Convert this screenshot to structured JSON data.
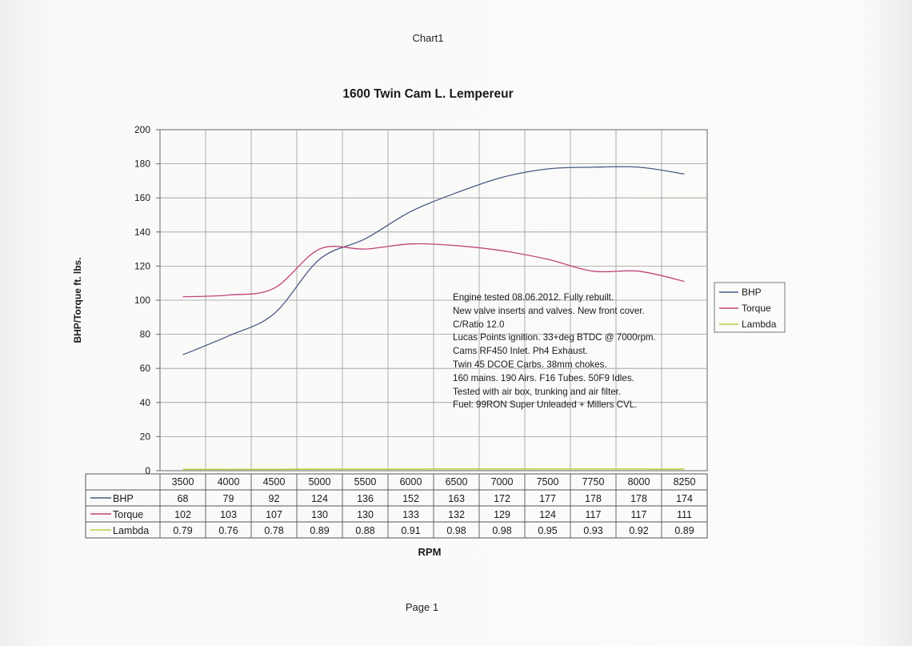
{
  "page": {
    "sheet_title": "Chart1",
    "footer": "Page 1"
  },
  "chart_data": {
    "type": "line",
    "title": "1600 Twin Cam L. Lempereur",
    "xlabel": "RPM",
    "ylabel": "BHP/Torque ft. lbs.",
    "ylim": [
      0,
      200
    ],
    "y_ticks": [
      "0",
      "20",
      "40",
      "60",
      "80",
      "100",
      "120",
      "140",
      "160",
      "180",
      "200"
    ],
    "categories": [
      "3500",
      "4000",
      "4500",
      "5000",
      "5500",
      "6000",
      "6500",
      "7000",
      "7500",
      "7750",
      "8000",
      "8250"
    ],
    "series": [
      {
        "name": "BHP",
        "color": "#4a5a86",
        "values": [
          68,
          79,
          92,
          124,
          136,
          152,
          163,
          172,
          177,
          178,
          178,
          174
        ],
        "table": [
          "68",
          "79",
          "92",
          "124",
          "136",
          "152",
          "163",
          "172",
          "177",
          "178",
          "178",
          "174"
        ]
      },
      {
        "name": "Torque",
        "color": "#c0447a",
        "values": [
          102,
          103,
          107,
          130,
          130,
          133,
          132,
          129,
          124,
          117,
          117,
          111
        ],
        "table": [
          "102",
          "103",
          "107",
          "130",
          "130",
          "133",
          "132",
          "129",
          "124",
          "117",
          "117",
          "111"
        ]
      },
      {
        "name": "Lambda",
        "color": "#b7cf47",
        "values": [
          0.79,
          0.76,
          0.78,
          0.89,
          0.88,
          0.91,
          0.98,
          0.98,
          0.95,
          0.93,
          0.92,
          0.89
        ],
        "table": [
          "0.79",
          "0.76",
          "0.78",
          "0.89",
          "0.88",
          "0.91",
          "0.98",
          "0.98",
          "0.95",
          "0.93",
          "0.92",
          "0.89"
        ]
      }
    ],
    "grid": true,
    "legend": "right",
    "data_table": true,
    "annotation": [
      "Engine tested 08.06.2012. Fully rebuilt.",
      "New valve inserts and valves.  New front cover.",
      "C/Ratio 12.0",
      "Lucas Points ignition. 33+deg BTDC  @ 7000rpm.",
      "Cams  RF450 Inlet.  Ph4 Exhaust.",
      "Twin 45 DCOE Carbs.   38mm chokes.",
      "160 mains. 190 Airs. F16 Tubes. 50F9 Idles.",
      "Tested with air box, trunking and air filter.",
      "Fuel: 99RON Super Unleaded + Millers CVL."
    ]
  }
}
